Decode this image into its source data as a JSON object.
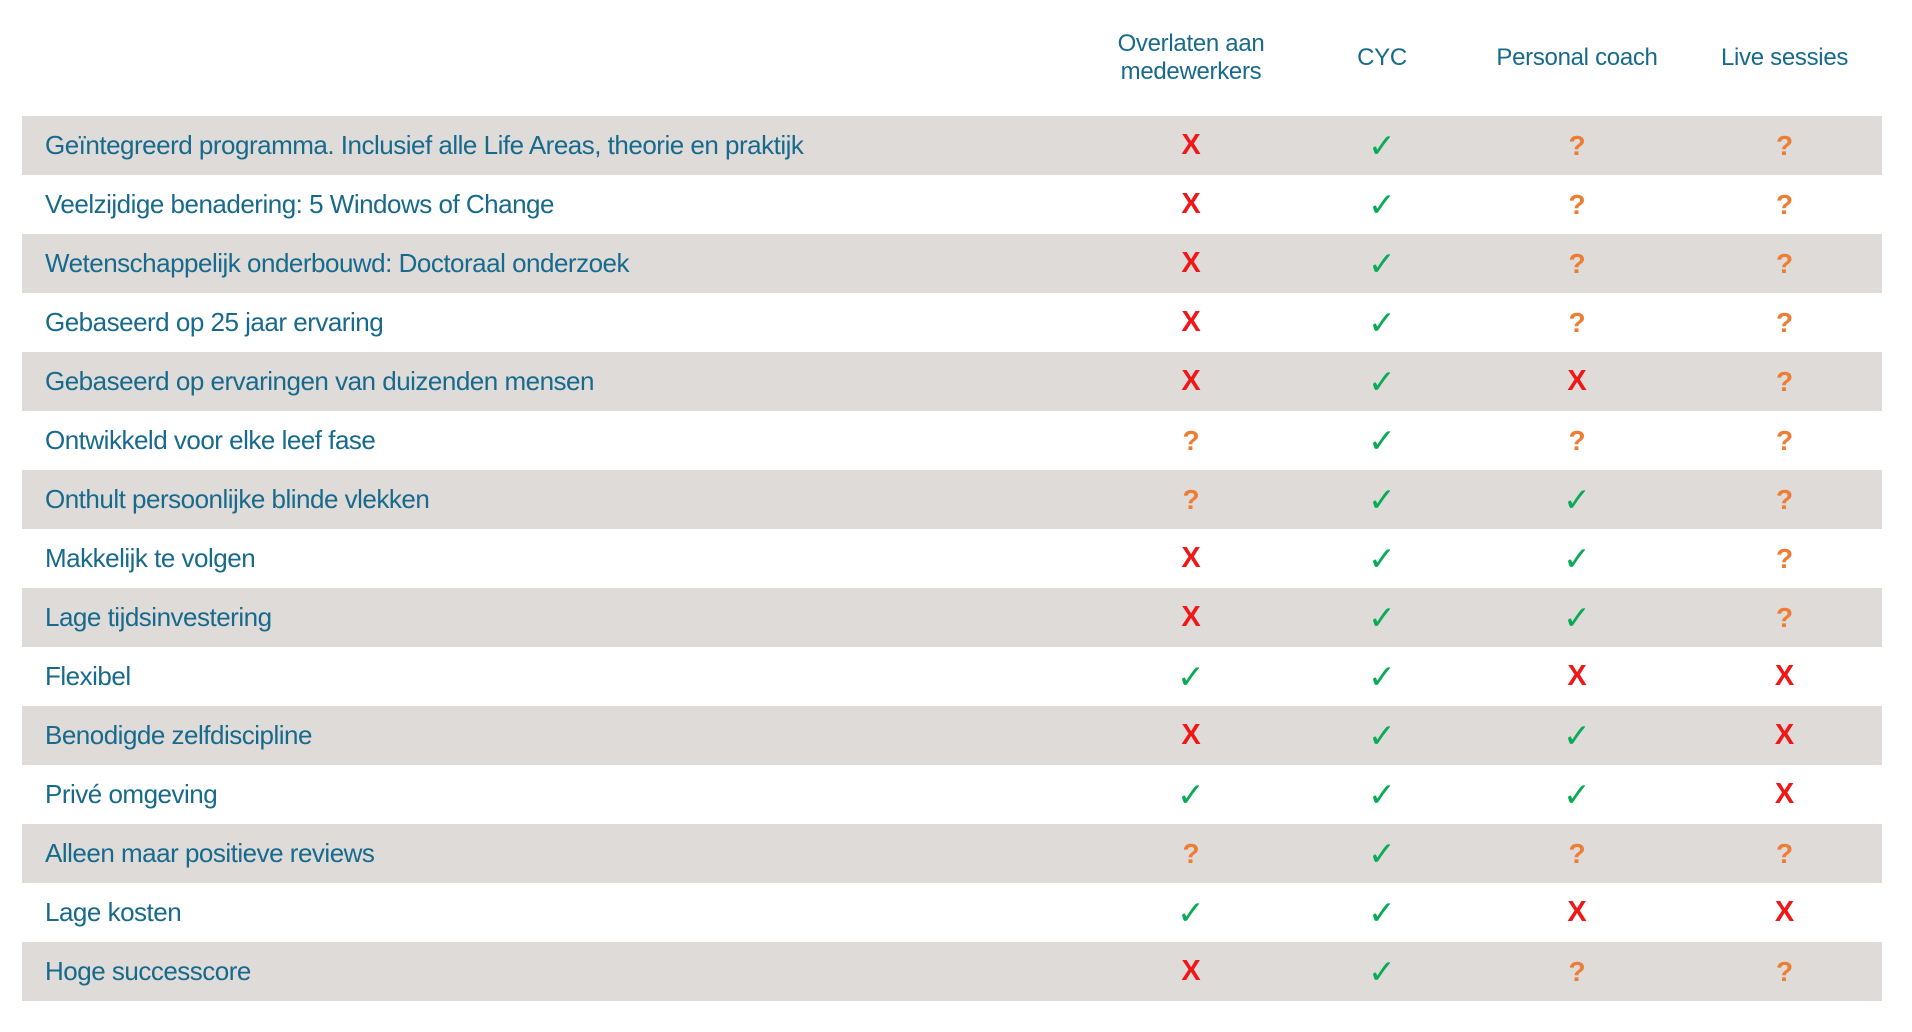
{
  "chart_data": {
    "type": "table",
    "columns": [
      "Overlaten aan medewerkers",
      "CYC",
      "Personal coach",
      "Live sessies"
    ],
    "rows": [
      {
        "feature": "Geïntegreerd programma. Inclusief alle Life Areas, theorie en praktijk",
        "marks": [
          "no",
          "yes",
          "maybe",
          "maybe"
        ]
      },
      {
        "feature": "Veelzijdige benadering: 5 Windows of Change",
        "marks": [
          "no",
          "yes",
          "maybe",
          "maybe"
        ]
      },
      {
        "feature": "Wetenschappelijk onderbouwd: Doctoraal onderzoek",
        "marks": [
          "no",
          "yes",
          "maybe",
          "maybe"
        ]
      },
      {
        "feature": "Gebaseerd op 25 jaar ervaring",
        "marks": [
          "no",
          "yes",
          "maybe",
          "maybe"
        ]
      },
      {
        "feature": "Gebaseerd op ervaringen van duizenden mensen",
        "marks": [
          "no",
          "yes",
          "no",
          "maybe"
        ]
      },
      {
        "feature": "Ontwikkeld voor elke leef fase",
        "marks": [
          "maybe",
          "yes",
          "maybe",
          "maybe"
        ]
      },
      {
        "feature": "Onthult persoonlijke blinde vlekken",
        "marks": [
          "maybe",
          "yes",
          "yes",
          "maybe"
        ]
      },
      {
        "feature": "Makkelijk te volgen",
        "marks": [
          "no",
          "yes",
          "yes",
          "maybe"
        ]
      },
      {
        "feature": "Lage tijdsinvestering",
        "marks": [
          "no",
          "yes",
          "yes",
          "maybe"
        ]
      },
      {
        "feature": "Flexibel",
        "marks": [
          "yes",
          "yes",
          "no",
          "no"
        ]
      },
      {
        "feature": "Benodigde zelfdiscipline",
        "marks": [
          "no",
          "yes",
          "yes",
          "no"
        ]
      },
      {
        "feature": "Privé omgeving",
        "marks": [
          "yes",
          "yes",
          "yes",
          "no"
        ]
      },
      {
        "feature": "Alleen maar positieve reviews",
        "marks": [
          "maybe",
          "yes",
          "maybe",
          "maybe"
        ]
      },
      {
        "feature": "Lage kosten",
        "marks": [
          "yes",
          "yes",
          "no",
          "no"
        ]
      },
      {
        "feature": "Hoge successcore",
        "marks": [
          "no",
          "yes",
          "maybe",
          "maybe"
        ]
      }
    ],
    "legend": {
      "yes": "✓",
      "no": "X",
      "maybe": "?"
    },
    "colors": {
      "yes": "#09ab56",
      "no": "#ef1717",
      "maybe": "#ef7c33",
      "header_text": "#186a8c",
      "feature_text": "#186a8c",
      "row_stripe": "#dedbd9",
      "background": "#ffffff"
    },
    "layout": {
      "stripe_pattern": "odd rows shaded, starting with first row",
      "header_align": "center"
    }
  }
}
